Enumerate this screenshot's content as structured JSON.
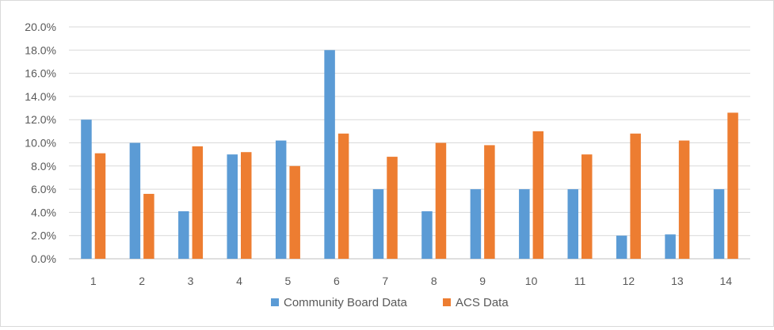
{
  "chart_data": {
    "type": "bar",
    "title": "",
    "xlabel": "",
    "ylabel": "",
    "categories": [
      "1",
      "2",
      "3",
      "4",
      "5",
      "6",
      "7",
      "8",
      "9",
      "10",
      "11",
      "12",
      "13",
      "14"
    ],
    "series": [
      {
        "name": "Community Board Data",
        "color": "#5b9bd5",
        "values": [
          12.0,
          10.0,
          4.1,
          9.0,
          10.2,
          18.0,
          6.0,
          4.1,
          6.0,
          6.0,
          6.0,
          2.0,
          2.1,
          6.0
        ]
      },
      {
        "name": "ACS Data",
        "color": "#ed7d31",
        "values": [
          9.1,
          5.6,
          9.7,
          9.2,
          8.0,
          10.8,
          8.8,
          10.0,
          9.8,
          11.0,
          9.0,
          10.8,
          10.2,
          12.6
        ]
      }
    ],
    "ylim": [
      0,
      20
    ],
    "yticks": [
      0,
      2,
      4,
      6,
      8,
      10,
      12,
      14,
      16,
      18,
      20
    ],
    "y_tick_labels": [
      "0.0%",
      "2.0%",
      "4.0%",
      "6.0%",
      "8.0%",
      "10.0%",
      "12.0%",
      "14.0%",
      "16.0%",
      "18.0%",
      "20.0%"
    ],
    "grid": true,
    "legend_position": "bottom",
    "gridline_color": "#d9d9d9",
    "axis_color": "#bfbfbf"
  }
}
